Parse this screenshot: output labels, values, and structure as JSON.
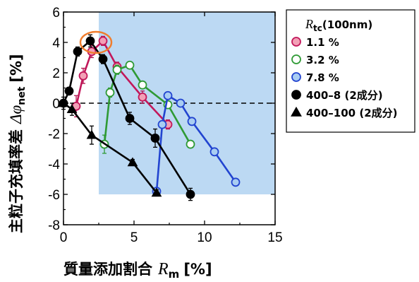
{
  "chart_data": {
    "type": "scatter",
    "xlabel": "質量添加割合",
    "xlabel_symbol": "R",
    "xlabel_sub": "m",
    "xlabel_unit": "[%]",
    "ylabel": "主粒子充填率差",
    "ylabel_symbol": "Δφ",
    "ylabel_sub": "net",
    "ylabel_unit": "[%]",
    "xlim": [
      0,
      15
    ],
    "ylim": [
      -8,
      6
    ],
    "xticks": [
      "0",
      "5",
      "10",
      "15"
    ],
    "yticks": [
      "6",
      "4",
      "2",
      "0",
      "-2",
      "-4",
      "-6",
      "-8"
    ],
    "legend_title": "R",
    "legend_title_sub": "tc",
    "legend_title_suffix": "(100nm)",
    "shaded_region": {
      "x": [
        2.5,
        15
      ],
      "y": [
        -6,
        6
      ],
      "color": "#bcd9f3"
    },
    "reference_line": {
      "y": 0,
      "style": "dashed"
    },
    "highlight": {
      "x": 2.3,
      "y": 4.0,
      "color": "#f07d2d"
    },
    "series": [
      {
        "name": "1.1 %",
        "marker": "circle-open",
        "fill": "#f2a0b6",
        "stroke": "#c2185b",
        "x": [
          0.9,
          1.4,
          2.0,
          2.8,
          3.8,
          5.6,
          7.4
        ],
        "y": [
          -0.2,
          1.8,
          3.4,
          4.1,
          2.4,
          0.4,
          -1.4
        ],
        "err": [
          0.7,
          0.5,
          0.4,
          0.3,
          0.3,
          0.4,
          0.3
        ]
      },
      {
        "name": "3.2 %",
        "marker": "circle-open",
        "fill": "#ffffff",
        "stroke": "#2f9a35",
        "x": [
          2.9,
          3.3,
          3.8,
          4.7,
          5.6,
          7.4,
          9.0
        ],
        "y": [
          -2.7,
          0.7,
          2.2,
          2.5,
          1.2,
          -0.1,
          -2.7
        ],
        "err": [
          0.6,
          0.3,
          0.3,
          0.2,
          0.2,
          0.2,
          0.2
        ]
      },
      {
        "name": "7.8 %",
        "marker": "circle-open",
        "fill": "#a9cdf2",
        "stroke": "#2244d0",
        "x": [
          6.6,
          7.0,
          7.4,
          8.3,
          9.1,
          10.7,
          12.2
        ],
        "y": [
          -5.8,
          -1.4,
          0.5,
          0.0,
          -1.2,
          -3.2,
          -5.2
        ],
        "err": [
          0.2,
          0.2,
          0.2,
          0.2,
          0.2,
          0.2,
          0.2
        ]
      },
      {
        "name": "400–8 (2成分)",
        "marker": "circle-filled",
        "fill": "#000000",
        "stroke": "#000000",
        "x": [
          0.0,
          0.4,
          1.0,
          1.9,
          2.8,
          4.7,
          6.5,
          9.0
        ],
        "y": [
          0.0,
          0.8,
          3.4,
          4.1,
          2.9,
          -1.0,
          -2.3,
          -6.0
        ],
        "err": [
          0.2,
          0.2,
          0.3,
          0.4,
          0.3,
          0.4,
          0.6,
          0.4
        ]
      },
      {
        "name": "400–100 (2成分)",
        "marker": "triangle-filled",
        "fill": "#000000",
        "stroke": "#000000",
        "x": [
          0.0,
          0.6,
          2.0,
          4.9,
          6.6
        ],
        "y": [
          0.0,
          -0.4,
          -2.1,
          -3.9,
          -5.9
        ],
        "err": [
          0.4,
          0.4,
          0.6,
          0.2,
          0.2
        ]
      }
    ]
  }
}
